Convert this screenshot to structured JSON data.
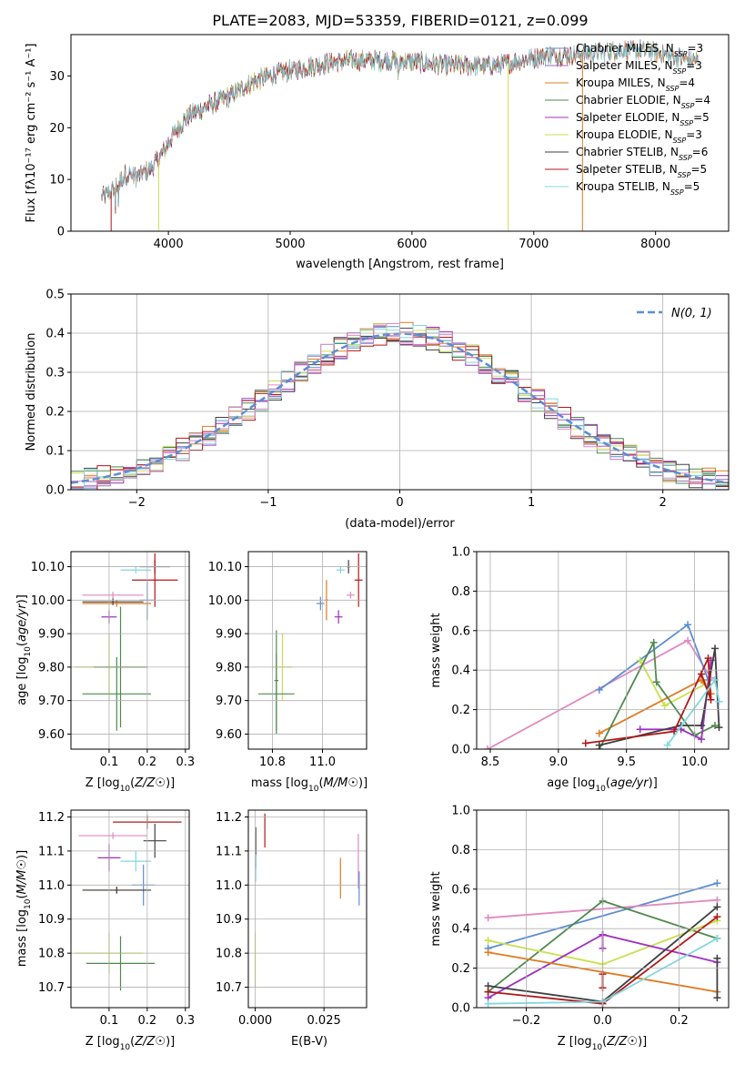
{
  "figure_title": "PLATE=2083, MJD=53359, FIBERID=0121, z=0.099",
  "colors": {
    "chabrier_miles": "#5b8dd6",
    "salpeter_miles": "#9b6ab8",
    "kroupa_miles": "#e07b20",
    "chabrier_elodie": "#4d8a4d",
    "salpeter_elodie": "#a030c0",
    "kroupa_elodie": "#c8e050",
    "chabrier_stelib": "#404040",
    "salpeter_stelib": "#b01818",
    "kroupa_stelib": "#80d8e0",
    "pink": "#e088c0",
    "normal_curve": "#5b8dd6",
    "grid": "#b0b0b0"
  },
  "chart_data": [
    {
      "id": "spectrum",
      "type": "line",
      "title": "PLATE=2083, MJD=53359, FIBERID=0121, z=0.099",
      "xlabel": "wavelength [Angstrom, rest frame]",
      "ylabel": "Flux [fλ10⁻¹⁷ erg cm⁻² s⁻¹ A⁻¹]",
      "xlim": [
        3200,
        8600
      ],
      "ylim": [
        0,
        38
      ],
      "xticks": [
        4000,
        5000,
        6000,
        7000,
        8000
      ],
      "yticks": [
        0,
        10,
        20,
        30
      ],
      "grid": false,
      "legend_position": "top-right",
      "continuum": {
        "x": [
          3450,
          3550,
          3650,
          3750,
          3850,
          3950,
          4050,
          4150,
          4300,
          4500,
          4700,
          4900,
          5100,
          5300,
          5500,
          5700,
          5900,
          6100,
          6300,
          6500,
          6700,
          6900,
          7100,
          7300,
          7500,
          7700,
          7900,
          8100,
          8300
        ],
        "y": [
          6.5,
          8,
          11,
          10.5,
          12,
          15,
          19,
          22,
          24,
          26,
          29,
          30.5,
          31.5,
          32.5,
          33,
          33,
          33,
          32.5,
          32,
          32,
          32,
          33,
          34,
          34,
          34.5,
          35,
          35,
          34,
          33
        ]
      },
      "series": [
        {
          "name": "Chabrier MILES, N_SSP=3",
          "color_key": "chabrier_miles",
          "x_range": [
            3450,
            8350
          ]
        },
        {
          "name": "Salpeter MILES, N_SSP=3",
          "color_key": "salpeter_miles",
          "x_range": [
            3450,
            8350
          ]
        },
        {
          "name": "Kroupa MILES, N_SSP=4",
          "color_key": "kroupa_miles",
          "x_range": [
            3450,
            8350
          ]
        },
        {
          "name": "Chabrier ELODIE, N_SSP=4",
          "color_key": "chabrier_elodie",
          "x_range": [
            3900,
            6790
          ]
        },
        {
          "name": "Salpeter ELODIE, N_SSP=5",
          "color_key": "salpeter_elodie",
          "x_range": [
            3900,
            6790
          ]
        },
        {
          "name": "Kroupa ELODIE, N_SSP=3",
          "color_key": "kroupa_elodie",
          "x_range": [
            3900,
            6790
          ]
        },
        {
          "name": "Chabrier STELIB, N_SSP=6",
          "color_key": "chabrier_stelib",
          "x_range": [
            3450,
            8350
          ]
        },
        {
          "name": "Salpeter STELIB, N_SSP=5",
          "color_key": "salpeter_stelib",
          "x_range": [
            3450,
            7400
          ]
        },
        {
          "name": "Kroupa STELIB, N_SSP=5",
          "color_key": "kroupa_stelib",
          "x_range": [
            3450,
            8350
          ]
        }
      ],
      "legend": [
        {
          "prefix": "Chabrier MILES, N",
          "sub": "SSP",
          "suffix": "=3",
          "color_key": "chabrier_miles"
        },
        {
          "prefix": "Salpeter MILES, N",
          "sub": "SSP",
          "suffix": "=3",
          "color_key": "salpeter_miles"
        },
        {
          "prefix": "Kroupa MILES, N",
          "sub": "SSP",
          "suffix": "=4",
          "color_key": "kroupa_miles"
        },
        {
          "prefix": "Chabrier ELODIE, N",
          "sub": "SSP",
          "suffix": "=4",
          "color_key": "chabrier_elodie"
        },
        {
          "prefix": "Salpeter ELODIE, N",
          "sub": "SSP",
          "suffix": "=5",
          "color_key": "salpeter_elodie"
        },
        {
          "prefix": "Kroupa ELODIE, N",
          "sub": "SSP",
          "suffix": "=3",
          "color_key": "kroupa_elodie"
        },
        {
          "prefix": "Chabrier STELIB, N",
          "sub": "SSP",
          "suffix": "=6",
          "color_key": "chabrier_stelib"
        },
        {
          "prefix": "Salpeter STELIB, N",
          "sub": "SSP",
          "suffix": "=5",
          "color_key": "salpeter_stelib"
        },
        {
          "prefix": "Kroupa STELIB, N",
          "sub": "SSP",
          "suffix": "=5",
          "color_key": "kroupa_stelib"
        }
      ]
    },
    {
      "id": "residuals",
      "type": "histogram",
      "xlabel": "(data-model)/error",
      "ylabel": "Normed distribution",
      "xlim": [
        -2.5,
        2.5
      ],
      "ylim": [
        0,
        0.5
      ],
      "xticks": [
        -2,
        -1,
        0,
        1,
        2
      ],
      "yticks": [
        0.0,
        0.1,
        0.2,
        0.3,
        0.4,
        0.5
      ],
      "grid": true,
      "legend_position": "top-right",
      "legend_label": "N(0, 1)",
      "bin_width": 0.1,
      "normal": {
        "mean": 0,
        "sigma": 1,
        "style": "dashed"
      },
      "series_color_keys": [
        "chabrier_miles",
        "salpeter_miles",
        "kroupa_miles",
        "chabrier_elodie",
        "salpeter_elodie",
        "kroupa_elodie",
        "chabrier_stelib",
        "salpeter_stelib",
        "kroupa_stelib",
        "pink"
      ]
    },
    {
      "id": "z_age",
      "type": "errorbar",
      "xlabel": "Z [log10(Z/Z☉)]",
      "ylabel": "age [log10(age/yr)]",
      "xlim": [
        0.0,
        0.31
      ],
      "ylim": [
        9.555,
        10.145
      ],
      "xticks": [
        0.1,
        0.2,
        0.3
      ],
      "yticks": [
        9.6,
        9.7,
        9.8,
        9.9,
        10.0,
        10.1
      ],
      "grid": true,
      "points": [
        {
          "x": 0.17,
          "y": 10.09,
          "xerr": 0.04,
          "yerr": 0.01,
          "color_key": "kroupa_stelib"
        },
        {
          "x": 0.22,
          "y": 10.1,
          "xerr": 0.04,
          "yerr": 0.02,
          "color_key": "chabrier_stelib"
        },
        {
          "x": 0.22,
          "y": 10.06,
          "xerr": 0.06,
          "yerr": 0.08,
          "color_key": "salpeter_stelib"
        },
        {
          "x": 0.11,
          "y": 10.015,
          "xerr": 0.08,
          "yerr": 0.01,
          "color_key": "pink"
        },
        {
          "x": 0.2,
          "y": 10.0,
          "xerr": 0.02,
          "yerr": 0.06,
          "color_key": "chabrier_miles"
        },
        {
          "x": 0.12,
          "y": 9.99,
          "xerr": 0.09,
          "yerr": 0.01,
          "color_key": "kroupa_miles"
        },
        {
          "x": 0.11,
          "y": 9.995,
          "xerr": 0.08,
          "yerr": 0.01,
          "color_key": "chabrier_stelib"
        },
        {
          "x": 0.1,
          "y": 9.95,
          "xerr": 0.02,
          "yerr": 0.02,
          "color_key": "salpeter_elodie"
        },
        {
          "x": 0.1,
          "y": 9.8,
          "xerr": 0.09,
          "yerr": 0.1,
          "color_key": "kroupa_elodie"
        },
        {
          "x": 0.13,
          "y": 9.8,
          "xerr": 0.07,
          "yerr": 0.18,
          "color_key": "chabrier_elodie"
        },
        {
          "x": 0.12,
          "y": 9.72,
          "xerr": 0.09,
          "yerr": 0.11,
          "color_key": "chabrier_elodie"
        }
      ]
    },
    {
      "id": "mass_age",
      "type": "errorbar",
      "xlabel": "mass [log10(M/M☉)]",
      "ylabel": "",
      "xlim": [
        10.63,
        11.22
      ],
      "ylim": [
        9.555,
        10.145
      ],
      "xticks": [
        10.75,
        11.0
      ],
      "yticks": [
        9.6,
        9.7,
        9.8,
        9.9,
        10.0,
        10.1
      ],
      "grid": true,
      "points": [
        {
          "x": 11.09,
          "y": 10.09,
          "xerr": 0.02,
          "yerr": 0.01,
          "color_key": "kroupa_stelib"
        },
        {
          "x": 11.13,
          "y": 10.1,
          "xerr": 0.01,
          "yerr": 0.02,
          "color_key": "chabrier_stelib"
        },
        {
          "x": 11.18,
          "y": 10.06,
          "xerr": 0.02,
          "yerr": 0.08,
          "color_key": "salpeter_stelib"
        },
        {
          "x": 11.14,
          "y": 10.015,
          "xerr": 0.02,
          "yerr": 0.01,
          "color_key": "pink"
        },
        {
          "x": 11.02,
          "y": 10.0,
          "xerr": 0.01,
          "yerr": 0.06,
          "color_key": "kroupa_miles"
        },
        {
          "x": 10.99,
          "y": 9.99,
          "xerr": 0.02,
          "yerr": 0.02,
          "color_key": "chabrier_miles"
        },
        {
          "x": 11.08,
          "y": 9.95,
          "xerr": 0.02,
          "yerr": 0.02,
          "color_key": "salpeter_elodie"
        },
        {
          "x": 10.8,
          "y": 9.8,
          "xerr": 0.05,
          "yerr": 0.1,
          "color_key": "kroupa_elodie"
        },
        {
          "x": 10.77,
          "y": 9.76,
          "xerr": 0.01,
          "yerr": 0.15,
          "color_key": "chabrier_elodie"
        },
        {
          "x": 10.77,
          "y": 9.72,
          "xerr": 0.09,
          "yerr": 0.12,
          "color_key": "chabrier_elodie"
        }
      ]
    },
    {
      "id": "age_weight",
      "type": "line",
      "xlabel": "age [log10(age/yr)]",
      "ylabel": "mass weight",
      "xlim": [
        8.4,
        10.25
      ],
      "ylim": [
        0,
        1.0
      ],
      "xticks": [
        8.5,
        9.0,
        9.5,
        10.0
      ],
      "yticks": [
        0.0,
        0.2,
        0.4,
        0.6,
        0.8,
        1.0
      ],
      "grid": true,
      "series": [
        {
          "color_key": "pink",
          "x": [
            8.48,
            9.95,
            10.12
          ],
          "y": [
            0.0,
            0.55,
            0.36
          ]
        },
        {
          "color_key": "chabrier_miles",
          "x": [
            9.3,
            9.95,
            10.1
          ],
          "y": [
            0.3,
            0.63,
            0.35
          ]
        },
        {
          "color_key": "kroupa_elodie",
          "x": [
            9.6,
            9.78,
            10.08
          ],
          "y": [
            0.45,
            0.22,
            0.33
          ]
        },
        {
          "color_key": "kroupa_miles",
          "x": [
            9.3,
            10.05,
            10.12
          ],
          "y": [
            0.08,
            0.35,
            0.28
          ]
        },
        {
          "color_key": "chabrier_elodie",
          "x": [
            9.3,
            9.7,
            9.72,
            10.0,
            10.15
          ],
          "y": [
            0.0,
            0.54,
            0.34,
            0.07,
            0.12
          ]
        },
        {
          "color_key": "salpeter_elodie",
          "x": [
            9.6,
            9.9,
            10.05,
            10.12
          ],
          "y": [
            0.1,
            0.1,
            0.05,
            0.45
          ]
        },
        {
          "color_key": "chabrier_stelib",
          "x": [
            9.3,
            9.9,
            10.05,
            10.15,
            10.18
          ],
          "y": [
            0.02,
            0.12,
            0.12,
            0.51,
            0.11
          ]
        },
        {
          "color_key": "salpeter_stelib",
          "x": [
            9.2,
            9.85,
            10.1,
            10.12,
            10.05
          ],
          "y": [
            0.03,
            0.09,
            0.46,
            0.25,
            0.38
          ]
        },
        {
          "color_key": "kroupa_stelib",
          "x": [
            9.8,
            10.15,
            10.18
          ],
          "y": [
            0.02,
            0.35,
            0.24
          ]
        }
      ]
    },
    {
      "id": "z_mass",
      "type": "errorbar",
      "xlabel": "Z [log10(Z/Z☉)]",
      "ylabel": "mass [log10(M/M☉)]",
      "xlim": [
        0.0,
        0.31
      ],
      "ylim": [
        10.64,
        11.22
      ],
      "xticks": [
        0.1,
        0.2,
        0.3
      ],
      "yticks": [
        10.7,
        10.8,
        10.9,
        11.0,
        11.1,
        11.2
      ],
      "grid": true,
      "points": [
        {
          "x": 0.2,
          "y": 11.185,
          "xerr": 0.09,
          "yerr": 0.02,
          "color_key": "salpeter_stelib"
        },
        {
          "x": 0.22,
          "y": 11.13,
          "xerr": 0.03,
          "yerr": 0.05,
          "color_key": "chabrier_stelib"
        },
        {
          "x": 0.11,
          "y": 11.145,
          "xerr": 0.09,
          "yerr": 0.01,
          "color_key": "pink"
        },
        {
          "x": 0.1,
          "y": 11.08,
          "xerr": 0.03,
          "yerr": 0.04,
          "color_key": "salpeter_elodie"
        },
        {
          "x": 0.17,
          "y": 11.07,
          "xerr": 0.04,
          "yerr": 0.03,
          "color_key": "kroupa_stelib"
        },
        {
          "x": 0.19,
          "y": 11.0,
          "xerr": 0.03,
          "yerr": 0.06,
          "color_key": "chabrier_miles"
        },
        {
          "x": 0.12,
          "y": 10.985,
          "xerr": 0.09,
          "yerr": 0.01,
          "color_key": "kroupa_miles"
        },
        {
          "x": 0.12,
          "y": 10.985,
          "xerr": 0.09,
          "yerr": 0.01,
          "color_key": "chabrier_stelib"
        },
        {
          "x": 0.1,
          "y": 10.8,
          "xerr": 0.09,
          "yerr": 0.06,
          "color_key": "kroupa_elodie"
        },
        {
          "x": 0.13,
          "y": 10.77,
          "xerr": 0.09,
          "yerr": 0.08,
          "color_key": "chabrier_elodie"
        }
      ]
    },
    {
      "id": "ebv_mass",
      "type": "errorbar",
      "xlabel": "E(B-V)",
      "ylabel": "",
      "xlim": [
        -0.0025,
        0.0405
      ],
      "ylim": [
        10.64,
        11.22
      ],
      "xticks": [
        0.0,
        0.025
      ],
      "xticklabels": [
        "0.000",
        "0.025"
      ],
      "yticks": [
        10.7,
        10.8,
        10.9,
        11.0,
        11.1,
        11.2
      ],
      "grid": true,
      "points": [
        {
          "x": 0.0035,
          "y": 11.16,
          "xerr": 0,
          "yerr": 0.05,
          "color_key": "salpeter_stelib"
        },
        {
          "x": 0.0002,
          "y": 11.11,
          "xerr": 0,
          "yerr": 0.06,
          "color_key": "chabrier_stelib"
        },
        {
          "x": 0.0002,
          "y": 11.05,
          "xerr": 0,
          "yerr": 0.04,
          "color_key": "kroupa_stelib"
        },
        {
          "x": 0.0,
          "y": 10.78,
          "xerr": 0,
          "yerr": 0.08,
          "color_key": "kroupa_elodie"
        },
        {
          "x": 0.031,
          "y": 11.02,
          "xerr": 0,
          "yerr": 0.06,
          "color_key": "kroupa_miles"
        },
        {
          "x": 0.0375,
          "y": 11.07,
          "xerr": 0,
          "yerr": 0.08,
          "color_key": "pink"
        },
        {
          "x": 0.0378,
          "y": 10.99,
          "xerr": 0,
          "yerr": 0.05,
          "color_key": "chabrier_miles"
        }
      ]
    },
    {
      "id": "z_weight",
      "type": "line",
      "xlabel": "Z [log10(Z/Z☉)]",
      "ylabel": "mass weight",
      "xlim": [
        -0.33,
        0.33
      ],
      "ylim": [
        0,
        1.0
      ],
      "xticks": [
        -0.2,
        0.0,
        0.2
      ],
      "yticks": [
        0.0,
        0.2,
        0.4,
        0.6,
        0.8,
        1.0
      ],
      "grid": true,
      "series": [
        {
          "color_key": "chabrier_miles",
          "x": [
            -0.3,
            0.3
          ],
          "y": [
            0.3,
            0.63
          ]
        },
        {
          "color_key": "pink",
          "x": [
            -0.3,
            0.3
          ],
          "y": [
            0.455,
            0.545
          ]
        },
        {
          "color_key": "chabrier_elodie",
          "x": [
            -0.3,
            0.0,
            0.3
          ],
          "y": [
            0.08,
            0.54,
            0.35
          ]
        },
        {
          "color_key": "kroupa_elodie",
          "x": [
            -0.3,
            0.0,
            0.3
          ],
          "y": [
            0.34,
            0.22,
            0.44
          ]
        },
        {
          "color_key": "salpeter_elodie",
          "x": [
            -0.3,
            0.0,
            0.3
          ],
          "y": [
            0.05,
            0.37,
            0.23
          ]
        },
        {
          "color_key": "kroupa_miles",
          "x": [
            -0.3,
            0.3
          ],
          "y": [
            0.28,
            0.08
          ]
        },
        {
          "color_key": "chabrier_stelib",
          "x": [
            -0.3,
            0.0,
            0.3
          ],
          "y": [
            0.11,
            0.03,
            0.51
          ]
        },
        {
          "color_key": "salpeter_stelib",
          "x": [
            -0.3,
            0.0,
            0.3
          ],
          "y": [
            0.08,
            0.02,
            0.46
          ]
        },
        {
          "color_key": "kroupa_stelib",
          "x": [
            -0.3,
            0.0,
            0.3
          ],
          "y": [
            0.02,
            0.03,
            0.35
          ]
        },
        {
          "color_key": "salpeter_elodie",
          "x": [
            0.0,
            0.0
          ],
          "y": [
            0.3,
            0.37
          ]
        },
        {
          "color_key": "salpeter_stelib",
          "x": [
            0.0,
            0.0
          ],
          "y": [
            0.1,
            0.17
          ]
        },
        {
          "color_key": "chabrier_stelib",
          "x": [
            0.3,
            0.3
          ],
          "y": [
            0.05,
            0.25
          ]
        }
      ]
    }
  ]
}
